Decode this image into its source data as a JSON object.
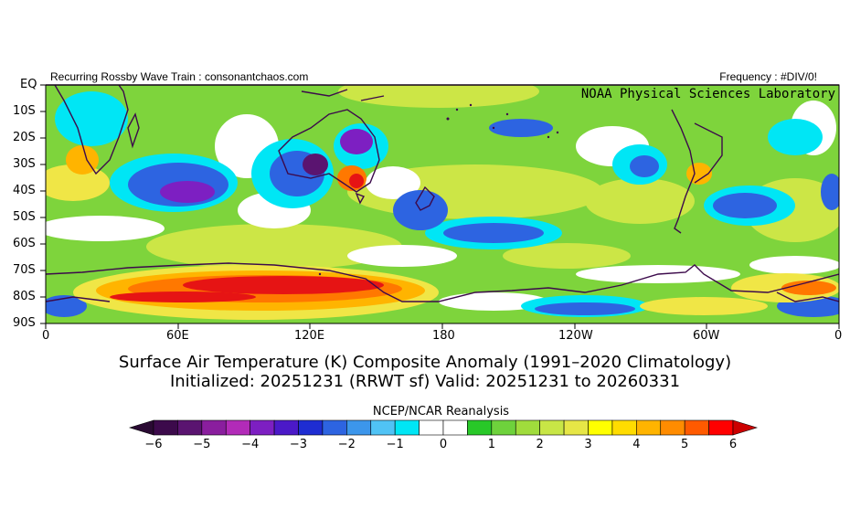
{
  "header": {
    "left": "Recurring Rossby Wave Train : consonantchaos.com",
    "right": "Frequency : #DIV/0!",
    "lab": "NOAA Physical Sciences Laboratory"
  },
  "axes": {
    "lat_labels": [
      "EQ",
      "10S",
      "20S",
      "30S",
      "40S",
      "50S",
      "60S",
      "70S",
      "80S",
      "90S"
    ],
    "lon_labels": [
      "0",
      "60E",
      "120E",
      "180",
      "120W",
      "60W",
      "0"
    ]
  },
  "titles": {
    "line1": "Surface Air Temperature (K) Composite Anomaly (1991–2020 Climatology)",
    "line2": "Initialized: 20251231 (RRWT sf) Valid: 20251231 to 20260331"
  },
  "colorbar": {
    "source": "NCEP/NCAR Reanalysis",
    "tick_labels": [
      "−6",
      "−5",
      "−4",
      "−3",
      "−2",
      "−1",
      "0",
      "1",
      "2",
      "3",
      "4",
      "5",
      "6"
    ],
    "colors": [
      "#3c0a4b",
      "#5a1470",
      "#8a1e9e",
      "#b22bb8",
      "#7d1fc2",
      "#4b19c8",
      "#1e2dd2",
      "#2d64e1",
      "#3c96eb",
      "#50c3f5",
      "#00e6f5",
      "#ffffff",
      "#ffffff",
      "#28c828",
      "#6ed23c",
      "#a0dc3c",
      "#c8e646",
      "#e6e646",
      "#ffff00",
      "#ffdc00",
      "#ffb400",
      "#ff8c00",
      "#ff5a00",
      "#ff0000"
    ],
    "under_color": "#2a0a33",
    "over_color": "#cc0000"
  },
  "map_colors": {
    "green": "#7ed43c",
    "lightgreen": "#a8dc3c",
    "yellowgreen": "#cce646",
    "yellow": "#f0e646",
    "orange": "#ffb400",
    "darkorange": "#ff7800",
    "red": "#e61414",
    "cyan": "#00e6f5",
    "lightblue": "#50c3f5",
    "blue": "#2d64e1",
    "darkblue": "#1e2dd2",
    "purple": "#7d1fc2",
    "magenta": "#b22bb8",
    "darkpurple": "#5a1470",
    "white": "#ffffff",
    "coast": "#3c0a4b"
  }
}
